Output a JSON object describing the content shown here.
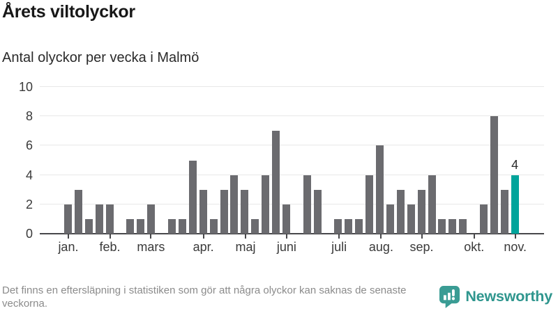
{
  "header": {
    "title": "Årets viltolyckor",
    "subtitle": "Antal olyckor per vecka i Malmö"
  },
  "chart_data": {
    "type": "bar",
    "title": "Årets viltolyckor",
    "subtitle": "Antal olyckor per vecka i Malmö",
    "ylabel": "",
    "xlabel": "",
    "ylim": [
      0,
      10
    ],
    "yticks": [
      0,
      2,
      4,
      6,
      8,
      10
    ],
    "grid": true,
    "x_unit": "vecka",
    "values": [
      2,
      3,
      1,
      2,
      2,
      0,
      1,
      1,
      2,
      0,
      1,
      1,
      5,
      3,
      1,
      3,
      4,
      3,
      1,
      4,
      7,
      2,
      0,
      4,
      3,
      0,
      1,
      1,
      1,
      4,
      6,
      2,
      3,
      2,
      3,
      4,
      1,
      1,
      1,
      0,
      2,
      8,
      3,
      4
    ],
    "month_ticks": [
      {
        "label": "jan.",
        "week": 0.4
      },
      {
        "label": "feb.",
        "week": 4.4
      },
      {
        "label": "mars",
        "week": 8.35
      },
      {
        "label": "apr.",
        "week": 13.4
      },
      {
        "label": "maj",
        "week": 17.45
      },
      {
        "label": "juni",
        "week": 21.4
      },
      {
        "label": "juli",
        "week": 26.45
      },
      {
        "label": "aug.",
        "week": 30.5
      },
      {
        "label": "sep.",
        "week": 34.4
      },
      {
        "label": "okt.",
        "week": 39.45
      },
      {
        "label": "nov.",
        "week": 43.4
      }
    ],
    "highlight_last": true,
    "last_value_label": "4",
    "legend": "none",
    "colors": {
      "bar": "#6b6b6f",
      "highlight": "#00a49b",
      "grid": "#e8e8e8",
      "axis": "#47474a",
      "tick_label": "#3a3a3a",
      "value_label": "#2b2b2b"
    }
  },
  "footer": {
    "note": "Det finns en eftersläpning i statistiken som gör att några olyckor kan saknas de senaste veckorna.",
    "brand": "Newsworthy",
    "brand_color": "#2f968e",
    "logo_icon": "newsworthy-speech-bubble-bar-chart",
    "logo_color": "#3a9c94"
  }
}
